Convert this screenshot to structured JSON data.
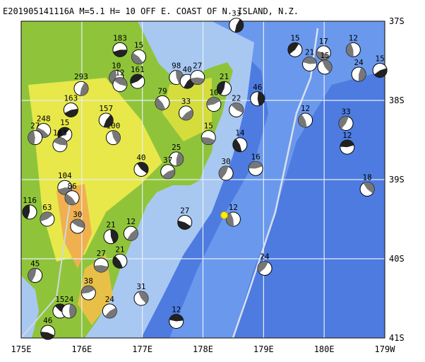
{
  "map": {
    "title": "E201905141116A  M=5.1 H= 10 OFF E. COAST OF N. ISLAND, N.Z.",
    "lonlim": [
      175,
      181
    ],
    "latlim": [
      37,
      41
    ],
    "xticks": [
      {
        "value": 175,
        "label": "175E"
      },
      {
        "value": 176,
        "label": "176E"
      },
      {
        "value": 177,
        "label": "177E"
      },
      {
        "value": 178,
        "label": "178E"
      },
      {
        "value": 179,
        "label": "179E"
      },
      {
        "value": 180,
        "label": "180E"
      },
      {
        "value": 181,
        "label": "179W"
      }
    ],
    "yticks": [
      {
        "value": 37,
        "label": "37S"
      },
      {
        "value": 38,
        "label": "38S"
      },
      {
        "value": 39,
        "label": "39S"
      },
      {
        "value": 40,
        "label": "40S"
      },
      {
        "value": 41,
        "label": "41S"
      }
    ],
    "target": {
      "lon": 178.35,
      "lat": 39.45
    },
    "events": [
      {
        "label": "183",
        "lon": 176.63,
        "lat": 37.36
      },
      {
        "label": "15",
        "lon": 176.94,
        "lat": 37.45
      },
      {
        "label": "10",
        "lon": 176.57,
        "lat": 37.71
      },
      {
        "label": "161",
        "lon": 176.92,
        "lat": 37.76
      },
      {
        "label": "12",
        "lon": 176.63,
        "lat": 37.8
      },
      {
        "label": "98",
        "lon": 177.56,
        "lat": 37.71
      },
      {
        "label": "40",
        "lon": 177.74,
        "lat": 37.76
      },
      {
        "label": "27",
        "lon": 177.91,
        "lat": 37.71
      },
      {
        "label": "79",
        "lon": 177.33,
        "lat": 38.03
      },
      {
        "label": "21",
        "lon": 178.35,
        "lat": 37.85
      },
      {
        "label": "10",
        "lon": 178.18,
        "lat": 38.05
      },
      {
        "label": "22",
        "lon": 178.55,
        "lat": 38.12
      },
      {
        "label": "46",
        "lon": 178.9,
        "lat": 37.98
      },
      {
        "label": "33",
        "lon": 177.72,
        "lat": 38.16
      },
      {
        "label": "15",
        "lon": 178.09,
        "lat": 38.47
      },
      {
        "label": "14",
        "lon": 178.61,
        "lat": 38.56
      },
      {
        "label": "30",
        "lon": 178.38,
        "lat": 38.92
      },
      {
        "label": "16",
        "lon": 178.87,
        "lat": 38.86
      },
      {
        "label": "40",
        "lon": 176.98,
        "lat": 38.87
      },
      {
        "label": "25",
        "lon": 177.56,
        "lat": 38.74
      },
      {
        "label": "37",
        "lon": 177.42,
        "lat": 38.9
      },
      {
        "label": "27",
        "lon": 177.7,
        "lat": 39.54
      },
      {
        "label": "12",
        "lon": 178.5,
        "lat": 39.5
      },
      {
        "label": "24",
        "lon": 179.02,
        "lat": 40.12
      },
      {
        "label": "12",
        "lon": 177.56,
        "lat": 40.79
      },
      {
        "label": "31",
        "lon": 176.98,
        "lat": 40.5
      },
      {
        "label": "293",
        "lon": 175.99,
        "lat": 37.85
      },
      {
        "label": "163",
        "lon": 175.82,
        "lat": 38.12
      },
      {
        "label": "248",
        "lon": 175.37,
        "lat": 38.38
      },
      {
        "label": "27",
        "lon": 175.23,
        "lat": 38.47
      },
      {
        "label": "15",
        "lon": 175.72,
        "lat": 38.43
      },
      {
        "label": "183",
        "lon": 175.64,
        "lat": 38.56
      },
      {
        "label": "100",
        "lon": 176.52,
        "lat": 38.47
      },
      {
        "label": "157",
        "lon": 176.4,
        "lat": 38.25
      },
      {
        "label": "104",
        "lon": 175.72,
        "lat": 39.1
      },
      {
        "label": "86",
        "lon": 175.84,
        "lat": 39.23
      },
      {
        "label": "116",
        "lon": 175.14,
        "lat": 39.41
      },
      {
        "label": "63",
        "lon": 175.43,
        "lat": 39.5
      },
      {
        "label": "30",
        "lon": 175.93,
        "lat": 39.59
      },
      {
        "label": "21",
        "lon": 176.48,
        "lat": 39.72
      },
      {
        "label": "12",
        "lon": 176.81,
        "lat": 39.68
      },
      {
        "label": "27",
        "lon": 176.32,
        "lat": 40.08
      },
      {
        "label": "21",
        "lon": 176.63,
        "lat": 40.03
      },
      {
        "label": "45",
        "lon": 175.23,
        "lat": 40.21
      },
      {
        "label": "38",
        "lon": 176.11,
        "lat": 40.43
      },
      {
        "label": "15",
        "lon": 175.64,
        "lat": 40.66
      },
      {
        "label": "24",
        "lon": 175.79,
        "lat": 40.66
      },
      {
        "label": "24",
        "lon": 176.46,
        "lat": 40.66
      },
      {
        "label": "46",
        "lon": 175.44,
        "lat": 40.93
      },
      {
        "label": "12",
        "lon": 179.69,
        "lat": 38.25
      },
      {
        "label": "33",
        "lon": 180.36,
        "lat": 38.29
      },
      {
        "label": "12",
        "lon": 180.38,
        "lat": 38.59
      },
      {
        "label": "18",
        "lon": 180.71,
        "lat": 39.12
      },
      {
        "label": "24",
        "lon": 180.57,
        "lat": 37.67
      },
      {
        "label": "15",
        "lon": 180.92,
        "lat": 37.62
      },
      {
        "label": "17",
        "lon": 179.99,
        "lat": 37.4
      },
      {
        "label": "12",
        "lon": 180.48,
        "lat": 37.36
      },
      {
        "label": "15",
        "lon": 179.52,
        "lat": 37.36
      },
      {
        "label": "21",
        "lon": 179.76,
        "lat": 37.54
      },
      {
        "label": "15",
        "lon": 180.01,
        "lat": 37.58
      },
      {
        "label": "33",
        "lon": 178.55,
        "lat": 37.05
      }
    ]
  }
}
